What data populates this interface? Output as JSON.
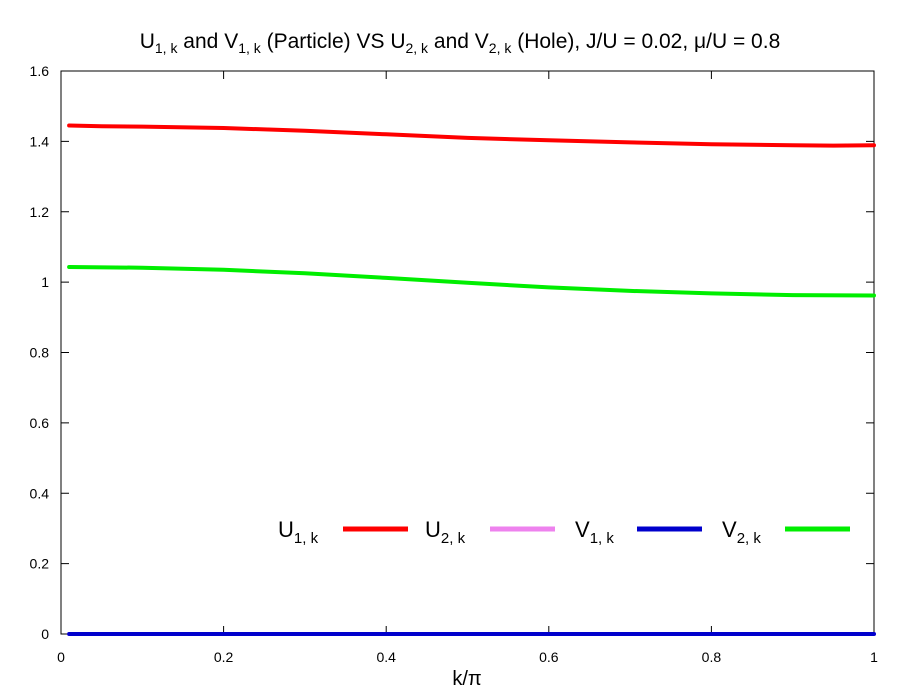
{
  "chart_data": {
    "type": "line",
    "title": "U1, k and V1, k (Particle) VS U2, k and V2, k (Hole), J/U = 0.02, μ/U = 0.8",
    "title_parts": {
      "u1_main": "U",
      "u1_sub": "1, k",
      "t1": " and ",
      "v1_main": "V",
      "v1_sub": "1, k",
      "t2": " (Particle) VS ",
      "u2_main": "U",
      "u2_sub": "2, k",
      "t3": " and ",
      "v2_main": "V",
      "v2_sub": "2, k",
      "t4": " (Hole), J/U = 0.02, μ/U = 0.8"
    },
    "xlabel": "k/π",
    "ylabel": "",
    "xlim": [
      0,
      1
    ],
    "ylim": [
      0,
      1.6
    ],
    "x_ticks": [
      "0",
      "0.2",
      "0.4",
      "0.6",
      "0.8",
      "1"
    ],
    "y_ticks": [
      "0",
      "0.2",
      "0.4",
      "0.6",
      "0.8",
      "1",
      "1.2",
      "1.4",
      "1.6"
    ],
    "legend_position": "lower-right",
    "grid": false,
    "series": [
      {
        "name": "U1, k",
        "name_main": "U",
        "name_sub": "1, k",
        "color": "#ff0000",
        "points": [
          [
            0.01,
            1.445
          ],
          [
            0.05,
            1.443
          ],
          [
            0.1,
            1.442
          ],
          [
            0.2,
            1.438
          ],
          [
            0.3,
            1.43
          ],
          [
            0.4,
            1.42
          ],
          [
            0.5,
            1.41
          ],
          [
            0.6,
            1.403
          ],
          [
            0.7,
            1.397
          ],
          [
            0.8,
            1.392
          ],
          [
            0.9,
            1.389
          ],
          [
            0.95,
            1.388
          ],
          [
            1.0,
            1.389
          ]
        ]
      },
      {
        "name": "U2, k",
        "name_main": "U",
        "name_sub": "2, k",
        "color": "#ee82ee",
        "points": [
          [
            0.01,
            0.0
          ],
          [
            1.0,
            0.0
          ]
        ]
      },
      {
        "name": "V1, k",
        "name_main": "V",
        "name_sub": "1, k",
        "color": "#0000cc",
        "points": [
          [
            0.01,
            0.0
          ],
          [
            1.0,
            0.0
          ]
        ]
      },
      {
        "name": "V2, k",
        "name_main": "V",
        "name_sub": "2, k",
        "color": "#00ee00",
        "points": [
          [
            0.01,
            1.043
          ],
          [
            0.1,
            1.041
          ],
          [
            0.2,
            1.035
          ],
          [
            0.3,
            1.025
          ],
          [
            0.4,
            1.012
          ],
          [
            0.5,
            0.998
          ],
          [
            0.6,
            0.985
          ],
          [
            0.7,
            0.975
          ],
          [
            0.8,
            0.968
          ],
          [
            0.9,
            0.963
          ],
          [
            1.0,
            0.962
          ]
        ]
      }
    ]
  }
}
